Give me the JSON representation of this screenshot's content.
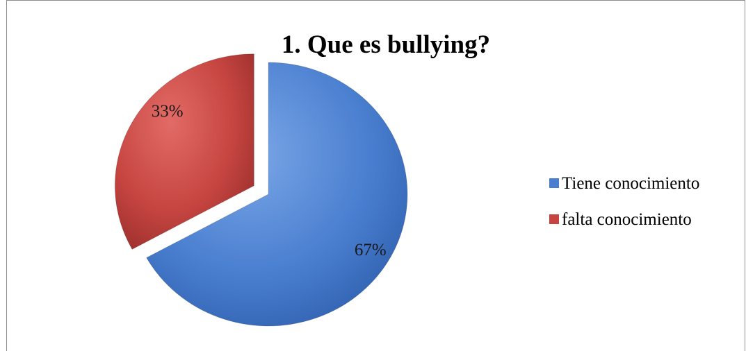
{
  "chart_data": {
    "type": "pie",
    "title": "1. Que es bullying?",
    "categories": [
      "Tiene conocimiento",
      "falta conocimiento"
    ],
    "values": [
      67,
      33
    ],
    "data_labels": [
      "67%",
      "33%"
    ],
    "colors": [
      "#4a7fd0",
      "#c64541"
    ],
    "exploded": [
      false,
      true
    ],
    "legend_position": "right"
  }
}
